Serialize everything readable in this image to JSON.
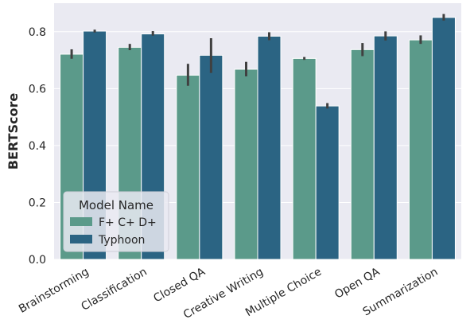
{
  "chart_data": {
    "type": "bar",
    "title": "",
    "xlabel": "",
    "ylabel": "BERTScore",
    "ylim": [
      0.0,
      0.9
    ],
    "yticks": [
      "0.0",
      "0.2",
      "0.4",
      "0.6",
      "0.8"
    ],
    "ytick_values": [
      0.0,
      0.2,
      0.4,
      0.6,
      0.8
    ],
    "grid": true,
    "background": "#eaeaf2",
    "categories": [
      "Brainstorming",
      "Classification",
      "Closed QA",
      "Creative Writing",
      "Multiple Choice",
      "Open QA",
      "Summarization"
    ],
    "series": [
      {
        "name": "F+ C+ D+",
        "color": "#5b9a8a",
        "values": [
          0.721,
          0.745,
          0.647,
          0.668,
          0.706,
          0.737,
          0.771
        ],
        "ci_low": [
          0.705,
          0.735,
          0.61,
          0.643,
          0.701,
          0.714,
          0.757
        ],
        "ci_high": [
          0.738,
          0.757,
          0.687,
          0.694,
          0.711,
          0.76,
          0.787
        ]
      },
      {
        "name": "Typhoon",
        "color": "#2b6483",
        "values": [
          0.802,
          0.792,
          0.717,
          0.784,
          0.539,
          0.785,
          0.85
        ],
        "ci_low": [
          0.797,
          0.786,
          0.655,
          0.77,
          0.53,
          0.769,
          0.839
        ],
        "ci_high": [
          0.807,
          0.802,
          0.777,
          0.798,
          0.549,
          0.801,
          0.862
        ]
      }
    ],
    "legend": {
      "title": "Model Name",
      "placement": "lower-left"
    }
  }
}
